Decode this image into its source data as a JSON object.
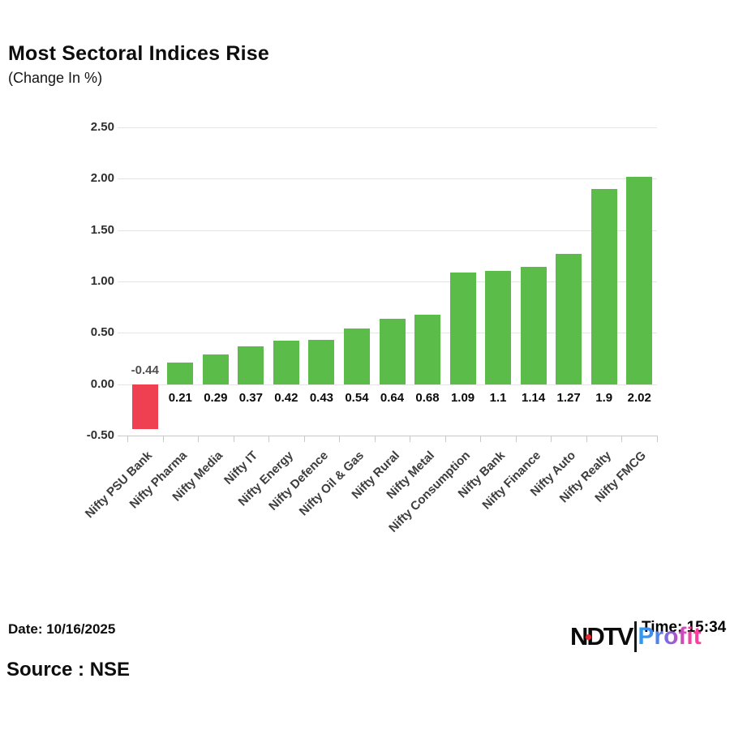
{
  "title": "Most Sectoral Indices Rise",
  "subtitle": "(Change In %)",
  "footer": {
    "date_label": "Date: 10/16/2025",
    "source_label": "Source : NSE",
    "time_label": "Time: 15:34"
  },
  "logo": {
    "ndtv": "NDTV",
    "profit": "Profit"
  },
  "colors": {
    "positive_bar": "#5cbc4a",
    "negative_bar": "#ee4050",
    "gridline": "#e4e4e4",
    "axis": "#c9c9c9",
    "ndtv_dot_red": "#e4282d",
    "profit_gradient_start": "#2e9bf0",
    "profit_gradient_end": "#fb3f9e"
  },
  "chart_data": {
    "type": "bar",
    "title": "Most Sectoral Indices Rise",
    "subtitle": "(Change In %)",
    "xlabel": "",
    "ylabel": "Change In %",
    "categories": [
      "Nifty PSU Bank",
      "Nifty Pharma",
      "Nifty Media",
      "Nifty IT",
      "Nifty Energy",
      "Nifty Defence",
      "Nifty Oil & Gas",
      "Nifty Rural",
      "Nifty Metal",
      "Nifty Consumption",
      "Nifty Bank",
      "Nifty Finance",
      "Nifty Auto",
      "Nifty Realty",
      "Nifty FMCG"
    ],
    "values": [
      -0.44,
      0.21,
      0.29,
      0.37,
      0.42,
      0.43,
      0.54,
      0.64,
      0.68,
      1.09,
      1.1,
      1.14,
      1.27,
      1.9,
      2.02
    ],
    "value_labels": [
      "-0.44",
      "0.21",
      "0.29",
      "0.37",
      "0.42",
      "0.43",
      "0.54",
      "0.64",
      "0.68",
      "1.09",
      "1.1",
      "1.14",
      "1.27",
      "1.9",
      "2.02"
    ],
    "ylim": [
      -0.5,
      2.5
    ],
    "yticks": [
      2.5,
      2.0,
      1.5,
      1.0,
      0.5,
      0.0,
      -0.5
    ],
    "ytick_labels": [
      "2.50",
      "2.00",
      "1.50",
      "1.00",
      "0.50",
      "0.00",
      "-0.50"
    ],
    "grid": true,
    "legend": false,
    "color_rule": "green if value >= 0 else red"
  }
}
